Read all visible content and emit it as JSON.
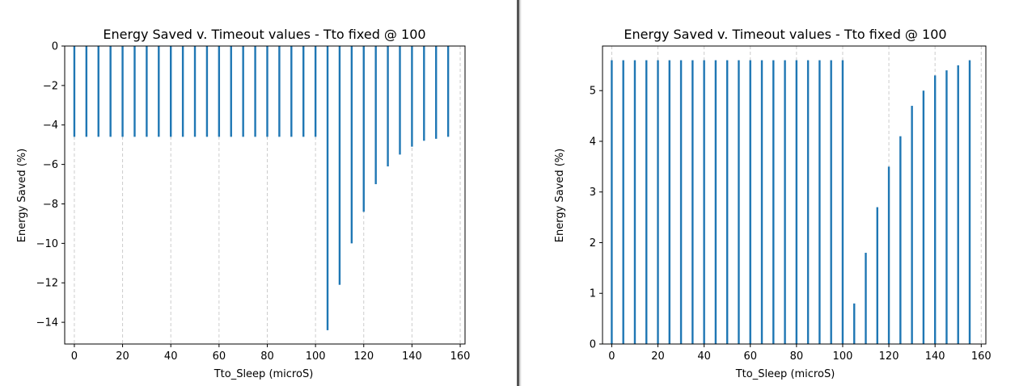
{
  "chart_data": [
    {
      "type": "bar",
      "title": "Energy Saved v. Timeout values - Tto fixed @ 100",
      "xlabel": "Tto_Sleep (microS)",
      "ylabel": "Energy Saved (%)",
      "x": [
        0,
        5,
        10,
        15,
        20,
        25,
        30,
        35,
        40,
        45,
        50,
        55,
        60,
        65,
        70,
        75,
        80,
        85,
        90,
        95,
        100,
        105,
        110,
        115,
        120,
        125,
        130,
        135,
        140,
        145,
        150,
        155
      ],
      "values": [
        -4.6,
        -4.6,
        -4.6,
        -4.6,
        -4.6,
        -4.6,
        -4.6,
        -4.6,
        -4.6,
        -4.6,
        -4.6,
        -4.6,
        -4.6,
        -4.6,
        -4.6,
        -4.6,
        -4.6,
        -4.6,
        -4.6,
        -4.6,
        -4.6,
        -14.4,
        -12.1,
        -10.0,
        -8.4,
        -7.0,
        -6.1,
        -5.5,
        -5.1,
        -4.8,
        -4.7,
        -4.6
      ],
      "xlim": [
        -4,
        162
      ],
      "ylim": [
        -15.1,
        0
      ],
      "xticks": [
        "0",
        "20",
        "40",
        "60",
        "80",
        "100",
        "120",
        "140",
        "160"
      ],
      "yticks": [
        "0",
        "−2",
        "−4",
        "−6",
        "−8",
        "−10",
        "−12",
        "−14"
      ],
      "grid": "x-dashed",
      "color": "#1f77b4"
    },
    {
      "type": "bar",
      "title": "Energy Saved v. Timeout values - Tto fixed @ 100",
      "xlabel": "Tto_Sleep (microS)",
      "ylabel": "Energy Saved (%)",
      "x": [
        0,
        5,
        10,
        15,
        20,
        25,
        30,
        35,
        40,
        45,
        50,
        55,
        60,
        65,
        70,
        75,
        80,
        85,
        90,
        95,
        100,
        105,
        110,
        115,
        120,
        125,
        130,
        135,
        140,
        145,
        150,
        155
      ],
      "values": [
        5.6,
        5.6,
        5.6,
        5.6,
        5.6,
        5.6,
        5.6,
        5.6,
        5.6,
        5.6,
        5.6,
        5.6,
        5.6,
        5.6,
        5.6,
        5.6,
        5.6,
        5.6,
        5.6,
        5.6,
        5.6,
        0.8,
        1.8,
        2.7,
        3.5,
        4.1,
        4.7,
        5.0,
        5.3,
        5.4,
        5.5,
        5.6
      ],
      "xlim": [
        -4,
        162
      ],
      "ylim": [
        0,
        5.88
      ],
      "xticks": [
        "0",
        "20",
        "40",
        "60",
        "80",
        "100",
        "120",
        "140",
        "160"
      ],
      "yticks": [
        "0",
        "1",
        "2",
        "3",
        "4",
        "5"
      ],
      "grid": "x-dashed",
      "color": "#1f77b4"
    }
  ]
}
